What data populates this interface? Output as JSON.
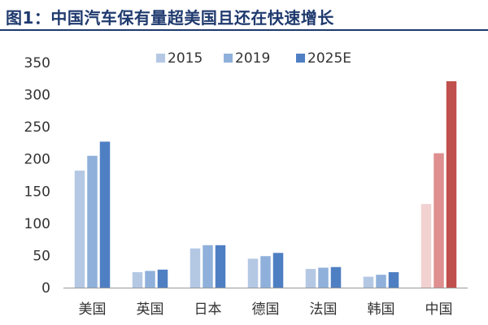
{
  "title": "图1：中国汽车保有量超美国且还在快速增长",
  "colors": {
    "title": "#1f3a6e",
    "series": [
      "#b4c8e4",
      "#8fb0da",
      "#4f7fc3"
    ],
    "highlight": [
      "#f2d1d1",
      "#df8f8f",
      "#c0504d"
    ],
    "axis": "#999999"
  },
  "chart_data": {
    "type": "bar",
    "title": "",
    "xlabel": "",
    "ylabel": "",
    "ylim": [
      0,
      350
    ],
    "yticks": [
      "0",
      "50",
      "100",
      "150",
      "200",
      "250",
      "300",
      "350"
    ],
    "grid": false,
    "legend_position": "top",
    "categories": [
      "美国",
      "英国",
      "日本",
      "德国",
      "法国",
      "韩国",
      "中国"
    ],
    "series": [
      {
        "name": "2015",
        "values": [
          182,
          24,
          61,
          45,
          29,
          17,
          130
        ]
      },
      {
        "name": "2019",
        "values": [
          205,
          26,
          66,
          49,
          31,
          20,
          209
        ]
      },
      {
        "name": "2025E",
        "values": [
          227,
          28,
          66,
          54,
          32,
          24,
          321
        ]
      }
    ],
    "highlight_category": "中国"
  }
}
